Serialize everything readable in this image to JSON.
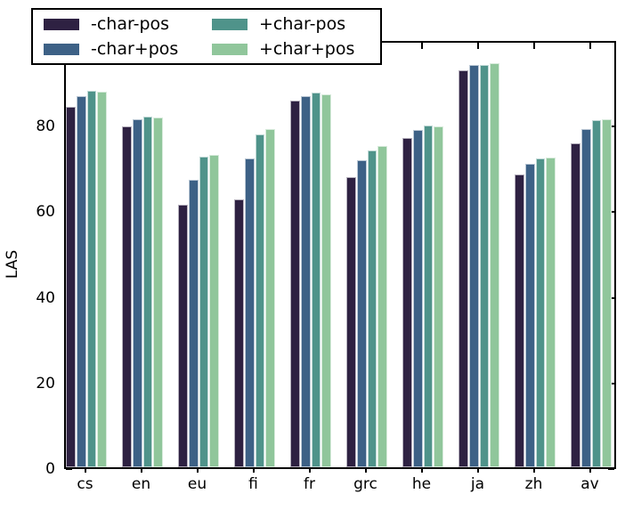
{
  "figure": {
    "background": "#ffffff",
    "axis_color": "#000000"
  },
  "legend": {
    "position": "upper left",
    "items": [
      {
        "label": "-char-pos",
        "color": "#2e2142"
      },
      {
        "label": "-char+pos",
        "color": "#3d6186"
      },
      {
        "label": "+char-pos",
        "color": "#4f938a"
      },
      {
        "label": "+char+pos",
        "color": "#90c69b"
      }
    ]
  },
  "chart_data": {
    "type": "bar",
    "title": "",
    "xlabel": "",
    "ylabel": "LAS",
    "ylim": [
      0,
      100
    ],
    "yticks": [
      0,
      20,
      40,
      60,
      80
    ],
    "grid": false,
    "legend_position": "upper left",
    "categories": [
      "cs",
      "en",
      "eu",
      "fi",
      "fr",
      "grc",
      "he",
      "ja",
      "zh",
      "av"
    ],
    "series": [
      {
        "name": "-char-pos",
        "color": "#2e2142",
        "values": [
          84.2,
          79.6,
          61.4,
          62.5,
          85.6,
          67.8,
          77.0,
          92.8,
          68.5,
          75.6
        ]
      },
      {
        "name": "-char+pos",
        "color": "#3d6186",
        "values": [
          86.7,
          81.3,
          67.1,
          72.1,
          86.8,
          71.8,
          78.9,
          94.0,
          71.0,
          79.0
        ]
      },
      {
        "name": "+char-pos",
        "color": "#4f938a",
        "values": [
          88.0,
          82.0,
          72.5,
          77.8,
          87.5,
          74.0,
          79.8,
          94.0,
          72.2,
          81.0
        ]
      },
      {
        "name": "+char+pos",
        "color": "#90c69b",
        "values": [
          87.7,
          81.7,
          72.9,
          79.0,
          87.2,
          75.1,
          79.7,
          94.3,
          72.4,
          81.3
        ]
      }
    ]
  }
}
